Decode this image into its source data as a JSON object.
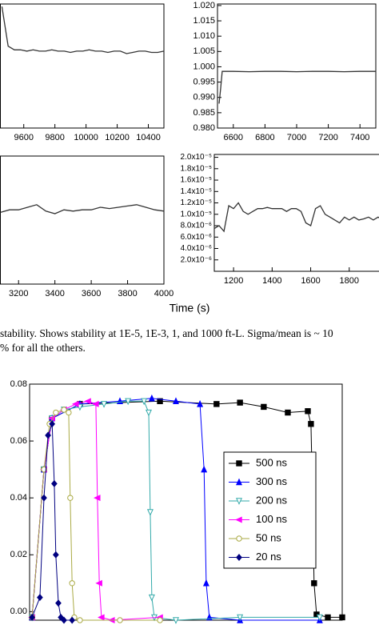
{
  "chart_data": [
    {
      "type": "line",
      "xlim": [
        9450,
        10500
      ],
      "ylim": [
        0,
        1
      ],
      "xticks": [
        9600,
        9800,
        10000,
        10200,
        10400
      ],
      "series": [
        {
          "color": "#333333",
          "x": [
            9460,
            9500,
            9540,
            9580,
            9620,
            9660,
            9700,
            9740,
            9780,
            9820,
            9860,
            9900,
            9940,
            9980,
            10020,
            10060,
            10100,
            10140,
            10180,
            10220,
            10260,
            10300,
            10340,
            10380,
            10420,
            10460,
            10500
          ],
          "values": [
            0.98,
            0.66,
            0.63,
            0.63,
            0.62,
            0.63,
            0.62,
            0.62,
            0.63,
            0.62,
            0.62,
            0.61,
            0.62,
            0.62,
            0.63,
            0.62,
            0.62,
            0.61,
            0.62,
            0.62,
            0.6,
            0.61,
            0.62,
            0.62,
            0.61,
            0.61,
            0.62
          ]
        }
      ]
    },
    {
      "type": "line",
      "xlim": [
        6500,
        7500
      ],
      "ylim": [
        0.98,
        1.0205
      ],
      "xticks": [
        6600,
        6800,
        7000,
        7200,
        7400
      ],
      "yticks": [
        {
          "value": 0.98,
          "label": "0.980"
        },
        {
          "value": 0.985,
          "label": "0.985"
        },
        {
          "value": 0.99,
          "label": "0.990"
        },
        {
          "value": 0.995,
          "label": "0.995"
        },
        {
          "value": 1.0,
          "label": "1.000"
        },
        {
          "value": 1.005,
          "label": "1.005"
        },
        {
          "value": 1.01,
          "label": "1.010"
        },
        {
          "value": 1.015,
          "label": "1.015"
        },
        {
          "value": 1.02,
          "label": "1.020"
        }
      ],
      "series": [
        {
          "color": "#333333",
          "x": [
            6510,
            6520,
            6530,
            6600,
            6700,
            6800,
            6900,
            7000,
            7100,
            7200,
            7300,
            7400,
            7500
          ],
          "values": [
            0.988,
            0.993,
            0.9985,
            0.9985,
            0.9984,
            0.9985,
            0.9985,
            0.9984,
            0.9985,
            0.9985,
            0.9984,
            0.9985,
            0.9985
          ]
        }
      ]
    },
    {
      "type": "line",
      "xlim": [
        3100,
        4000
      ],
      "ylim": [
        0,
        1
      ],
      "xticks": [
        3200,
        3400,
        3600,
        3800,
        4000
      ],
      "series": [
        {
          "color": "#333333",
          "x": [
            3100,
            3150,
            3200,
            3250,
            3300,
            3350,
            3400,
            3450,
            3500,
            3550,
            3600,
            3650,
            3700,
            3750,
            3800,
            3850,
            3900,
            3950,
            4000
          ],
          "values": [
            0.56,
            0.58,
            0.58,
            0.6,
            0.62,
            0.57,
            0.55,
            0.58,
            0.57,
            0.58,
            0.58,
            0.6,
            0.59,
            0.6,
            0.61,
            0.62,
            0.6,
            0.58,
            0.57
          ]
        }
      ]
    },
    {
      "type": "line",
      "xlim": [
        1100,
        2000
      ],
      "ylim": [
        0,
        2.05e-05
      ],
      "xticks": [
        1200,
        1400,
        1600,
        1800,
        {
          "value": 2000,
          "label": "20"
        }
      ],
      "yticks": [
        {
          "value": 2e-06,
          "label": "2.0x10⁻⁶"
        },
        {
          "value": 4e-06,
          "label": "4.0x10⁻⁶"
        },
        {
          "value": 6e-06,
          "label": "6.0x10⁻⁶"
        },
        {
          "value": 8e-06,
          "label": "8.0x10⁻⁶"
        },
        {
          "value": 1e-05,
          "label": "1.0x10⁻⁵"
        },
        {
          "value": 1.2e-05,
          "label": "1.2x10⁻⁵"
        },
        {
          "value": 1.4e-05,
          "label": "1.4x10⁻⁵"
        },
        {
          "value": 1.6e-05,
          "label": "1.6x10⁻⁵"
        },
        {
          "value": 1.8e-05,
          "label": "1.8x10⁻⁵"
        },
        {
          "value": 2e-05,
          "label": "2.0x10⁻⁵"
        }
      ],
      "series": [
        {
          "color": "#333333",
          "x": [
            1100,
            1125,
            1150,
            1175,
            1200,
            1225,
            1250,
            1275,
            1300,
            1325,
            1350,
            1375,
            1400,
            1425,
            1450,
            1475,
            1500,
            1525,
            1550,
            1575,
            1600,
            1625,
            1650,
            1675,
            1700,
            1725,
            1750,
            1775,
            1800,
            1825,
            1850,
            1875,
            1900,
            1925,
            1950,
            1975,
            2000
          ],
          "values": [
            7.5e-06,
            8e-06,
            7e-06,
            1.15e-05,
            1.1e-05,
            1.2e-05,
            1.05e-05,
            1e-05,
            1.05e-05,
            1.1e-05,
            1.1e-05,
            1.12e-05,
            1.1e-05,
            1.1e-05,
            1.1e-05,
            1.05e-05,
            1.1e-05,
            1.1e-05,
            1.05e-05,
            8.5e-06,
            8e-06,
            1.1e-05,
            1.15e-05,
            1e-05,
            9.5e-06,
            9e-06,
            8.5e-06,
            9.5e-06,
            9e-06,
            9.5e-06,
            9e-06,
            9.2e-06,
            9.5e-06,
            9e-06,
            9.5e-06,
            9e-06,
            9.5e-06
          ]
        }
      ]
    },
    {
      "type": "line",
      "xlim": [
        0,
        100
      ],
      "ylim": [
        -0.003,
        0.08
      ],
      "legend": "right",
      "yticks": [
        {
          "value": 0,
          "label": "0.00"
        },
        {
          "value": 0.02,
          "label": "0.02"
        },
        {
          "value": 0.04,
          "label": "0.04"
        },
        {
          "value": 0.06,
          "label": "0.06"
        },
        {
          "value": 0.08,
          "label": "0.08"
        }
      ],
      "series": [
        {
          "name": "500 ns",
          "color": "#000000",
          "marker": "square",
          "x": [
            0.8,
            4.6,
            7.2,
            16.1,
            41.7,
            59.8,
            67.3,
            74.9,
            82.6,
            89,
            90,
            90.5,
            91,
            91.8,
            95.4,
            100
          ],
          "values": [
            -0.002,
            0.05,
            0.068,
            0.073,
            0.074,
            0.073,
            0.0735,
            0.072,
            0.07,
            0.0705,
            0.066,
            0.04,
            0.01,
            -0.001,
            -0.002,
            -0.002
          ]
        },
        {
          "name": "300 ns",
          "color": "#0000ff",
          "marker": "triangle-up",
          "x": [
            0.8,
            4.6,
            7.2,
            16.1,
            28.9,
            39.1,
            46.8,
            54.5,
            55.8,
            56.5,
            57.5,
            67.3,
            92.8
          ],
          "values": [
            -0.002,
            0.05,
            0.068,
            0.073,
            0.074,
            0.075,
            0.074,
            0.073,
            0.05,
            0.01,
            -0.002,
            -0.003,
            -0.003
          ]
        },
        {
          "name": "200 ns",
          "color": "#33aaaa",
          "marker": "triangle-down-open",
          "x": [
            0.8,
            4.6,
            7.2,
            11,
            16.1,
            23.8,
            31.5,
            36.6,
            38.1,
            38.6,
            39.1,
            39.9,
            46.8,
            67.3,
            92.8
          ],
          "values": [
            -0.002,
            0.05,
            0.068,
            0.071,
            0.072,
            0.073,
            0.074,
            0.074,
            0.07,
            0.035,
            0.005,
            -0.002,
            -0.003,
            -0.002,
            -0.002
          ]
        },
        {
          "name": "100 ns",
          "color": "#ff00ff",
          "marker": "triangle-left",
          "x": [
            0.8,
            4.6,
            7.2,
            11,
            14.8,
            18.7,
            21.2,
            21.7,
            22.3,
            23,
            26.3,
            41.7
          ],
          "values": [
            -0.002,
            0.05,
            0.068,
            0.071,
            0.073,
            0.074,
            0.073,
            0.04,
            0.01,
            -0.002,
            -0.003,
            -0.002
          ]
        },
        {
          "name": "50 ns",
          "color": "#aaaa44",
          "marker": "circle-open",
          "x": [
            0.8,
            4.6,
            6.4,
            8.4,
            11,
            12.5,
            13,
            13.6,
            14.3,
            16.1,
            28.9,
            41.7
          ],
          "values": [
            -0.002,
            0.05,
            0.066,
            0.07,
            0.071,
            0.07,
            0.04,
            0.01,
            -0.002,
            -0.003,
            -0.003,
            -0.003
          ]
        },
        {
          "name": "20 ns",
          "color": "#000080",
          "marker": "diamond",
          "x": [
            0.8,
            3.3,
            4.6,
            5.9,
            7.2,
            7.9,
            8.4,
            9.2,
            10,
            11,
            13.6
          ],
          "values": [
            -0.002,
            0.005,
            0.04,
            0.062,
            0.066,
            0.045,
            0.02,
            0.003,
            -0.002,
            -0.003,
            -0.003
          ]
        }
      ]
    }
  ],
  "shared_xlabel": "Time (s)",
  "caption_lines": [
    "stability.  Shows stability at 1E-5, 1E-3, 1, and 1000 ft-L.  Sigma/mean is ~ 10",
    "% for all the others."
  ]
}
